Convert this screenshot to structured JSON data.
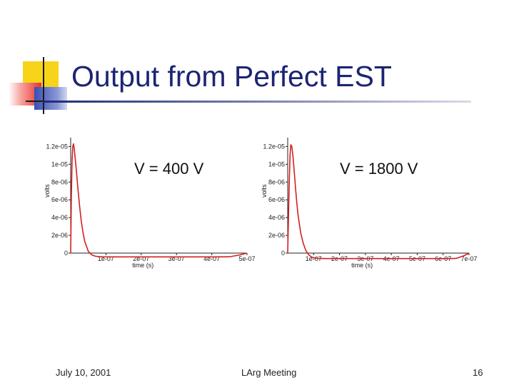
{
  "slide": {
    "title": "Output from Perfect EST",
    "footer_date": "July 10, 2001",
    "footer_center": "LArg Meeting",
    "page_number": "16"
  },
  "colors": {
    "curve": "#d42020",
    "title": "#1c2473",
    "accent_yellow": "#f7d31a",
    "accent_red": "#e8322a",
    "accent_blue": "#3a4fb3"
  },
  "chart_data": [
    {
      "type": "line",
      "label": "V = 400 V",
      "xlabel": "time (s)",
      "ylabel": "volts",
      "xlim": [
        0,
        5e-07
      ],
      "ylim": [
        0,
        1.3e-05
      ],
      "x_ticks": [
        "1e-07",
        "2e-07",
        "3e-07",
        "4e-07",
        "5e-07"
      ],
      "y_ticks": [
        "0",
        "2e-06",
        "4e-06",
        "6e-06",
        "8e-06",
        "1e-05",
        "1.2e-05"
      ],
      "x_tick_values": [
        1e-07,
        2e-07,
        3e-07,
        4e-07,
        5e-07
      ],
      "y_tick_values": [
        0,
        2e-06,
        4e-06,
        6e-06,
        8e-06,
        1e-05,
        1.2e-05
      ],
      "grid": false,
      "series": [
        {
          "x": [
            0,
            2e-09,
            4e-09,
            6e-09,
            8e-09,
            1e-08,
            1.5e-08,
            2e-08,
            2.5e-08,
            3e-08,
            3.5e-08,
            4e-08,
            5e-08,
            6e-08,
            7e-08,
            8e-08,
            9e-08,
            1.1e-07,
            1.4e-07,
            2e-07,
            3e-07,
            4e-07,
            4.5e-07,
            4.8e-07,
            5e-07
          ],
          "y": [
            0,
            6.5e-06,
            1.05e-05,
            1.2e-05,
            1.23e-05,
            1.18e-05,
            9.8e-06,
            7.5e-06,
            5.4e-06,
            3.6e-06,
            2.3e-06,
            1.3e-06,
            2e-07,
            -2e-07,
            -3.5e-07,
            -4e-07,
            -4.2e-07,
            -4.3e-07,
            -4.3e-07,
            -4.3e-07,
            -4.3e-07,
            -4.3e-07,
            -4.2e-07,
            -2e-07,
            0
          ]
        }
      ]
    },
    {
      "type": "line",
      "label": "V = 1800 V",
      "xlabel": "time (s)",
      "ylabel": "volts",
      "xlim": [
        0,
        7e-07
      ],
      "ylim": [
        0,
        1.3e-05
      ],
      "x_ticks": [
        "1e-07",
        "2e-07",
        "3e-07",
        "4e-07",
        "5e-07",
        "6e-07",
        "7e-07"
      ],
      "y_ticks": [
        "0",
        "2e-06",
        "4e-06",
        "6e-06",
        "8e-06",
        "1e-05",
        "1.2e-05"
      ],
      "x_tick_values": [
        1e-07,
        2e-07,
        3e-07,
        4e-07,
        5e-07,
        6e-07,
        7e-07
      ],
      "y_tick_values": [
        0,
        2e-06,
        4e-06,
        6e-06,
        8e-06,
        1e-05,
        1.2e-05
      ],
      "grid": false,
      "series": [
        {
          "x": [
            0,
            3e-09,
            6e-09,
            9e-09,
            1.2e-08,
            1.6e-08,
            2e-08,
            2.5e-08,
            3e-08,
            3.5e-08,
            4e-08,
            5e-08,
            6e-08,
            7e-08,
            8e-08,
            9e-08,
            1e-07,
            1.2e-07,
            1.5e-07,
            2e-07,
            3e-07,
            4e-07,
            5e-07,
            6e-07,
            6.5e-07,
            6.8e-07,
            7e-07
          ],
          "y": [
            0,
            4e-06,
            8e-06,
            1.1e-05,
            1.22e-05,
            1.2e-05,
            1.1e-05,
            9.3e-06,
            7.4e-06,
            5.7e-06,
            4.3e-06,
            2.3e-06,
            1.1e-06,
            3e-07,
            -1.5e-07,
            -4e-07,
            -5.2e-07,
            -6e-07,
            -6.2e-07,
            -6.2e-07,
            -6.2e-07,
            -6.2e-07,
            -6.2e-07,
            -6.2e-07,
            -6e-07,
            -3e-07,
            0
          ]
        }
      ]
    }
  ]
}
